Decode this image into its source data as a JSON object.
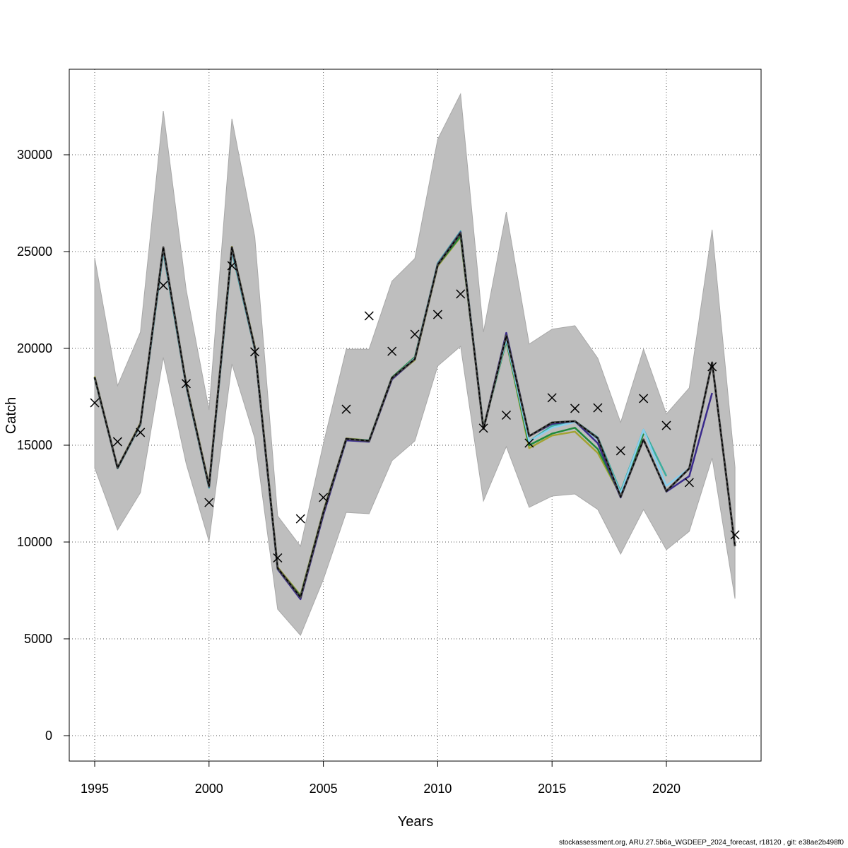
{
  "chart_data": {
    "type": "line",
    "title": "",
    "xlabel": "Years",
    "ylabel": "Catch",
    "xlim": [
      1994,
      2024
    ],
    "ylim": [
      -1300,
      34400
    ],
    "xticks": [
      1995,
      2000,
      2005,
      2010,
      2015,
      2020
    ],
    "yticks": [
      0,
      5000,
      10000,
      15000,
      20000,
      25000,
      30000
    ],
    "grid": true,
    "band": {
      "color": "#bebebe",
      "x_start": 1995,
      "upper": [
        24670,
        18070,
        20840,
        32260,
        23030,
        16820,
        31860,
        25770,
        11350,
        9780,
        15070,
        19960,
        19960,
        23470,
        24640,
        30800,
        33140,
        20840,
        27040,
        20220,
        20990,
        21170,
        19490,
        16170,
        19960,
        16610,
        17960,
        26130,
        13870
      ],
      "lower": [
        13830,
        10620,
        12550,
        19530,
        14050,
        10040,
        19200,
        15360,
        6530,
        5180,
        8070,
        11530,
        11460,
        14200,
        15220,
        19090,
        20110,
        12120,
        14930,
        11790,
        12370,
        12480,
        11680,
        9380,
        11680,
        9600,
        10550,
        14340,
        7080
      ]
    },
    "observed": {
      "marker": "x",
      "color": "#000000",
      "x_start": 1995,
      "values": [
        17190,
        15180,
        15660,
        23250,
        18180,
        12040,
        24270,
        19820,
        9180,
        11200,
        12300,
        16860,
        21680,
        19850,
        20730,
        21750,
        22810,
        15880,
        16550,
        15110,
        17450,
        16900,
        16930,
        14710,
        17410,
        16020,
        13070,
        19050,
        10370
      ]
    },
    "series": [
      {
        "color": "#000000",
        "dashed": true,
        "x_start": 1995,
        "values": [
          18500,
          13830,
          16100,
          25220,
          18140,
          12880,
          25220,
          20040,
          8650,
          7150,
          11530,
          15330,
          15220,
          18470,
          19450,
          24310,
          25950,
          15840,
          20660,
          15470,
          16170,
          16240,
          15360,
          12340,
          15290,
          12630,
          13800,
          19270,
          9780
        ]
      },
      {
        "color": "#3a2a8c",
        "dashed": false,
        "x_start": 1995,
        "values": [
          18500,
          13820,
          16080,
          25150,
          18100,
          12850,
          25150,
          20000,
          8600,
          7050,
          11400,
          15250,
          15180,
          18400,
          19450,
          24350,
          26000,
          15850,
          20800,
          15470,
          16100,
          16240,
          15100,
          12300,
          15300,
          12600,
          13400,
          17700
        ]
      },
      {
        "color": "#87cfee",
        "dashed": false,
        "x_start": 1995,
        "values": [
          18500,
          13820,
          16080,
          25100,
          18100,
          12850,
          25100,
          20000,
          8600,
          7100,
          11450,
          15250,
          15200,
          18450,
          19500,
          24350,
          26000,
          15900,
          20500,
          15200,
          15900,
          16200,
          15300,
          12500,
          15800,
          12900,
          13800
        ]
      },
      {
        "color": "#3cae9e",
        "dashed": false,
        "x_start": 1995,
        "values": [
          18450,
          13800,
          16050,
          25000,
          18050,
          12800,
          25000,
          19950,
          8600,
          7100,
          11450,
          15300,
          15250,
          18450,
          19500,
          24400,
          26050,
          15900,
          20450,
          15200,
          16000,
          16250,
          15400,
          12600,
          15800,
          13400
        ]
      },
      {
        "color": "#1f8a3c",
        "dashed": false,
        "x_start": 1995,
        "values": [
          18500,
          13830,
          16100,
          25150,
          18150,
          12880,
          25150,
          20050,
          8650,
          7200,
          11550,
          15330,
          15250,
          18500,
          19550,
          24300,
          25800,
          15900,
          20400,
          15000,
          15600,
          15900,
          14800,
          12400,
          15600
        ]
      },
      {
        "color": "#a3a332",
        "dashed": false,
        "x_start": 1995,
        "values": [
          18550,
          13850,
          16150,
          25200,
          18200,
          12950,
          25250,
          20100,
          8700,
          7250,
          11600,
          15350,
          15250,
          18450,
          19400,
          24250,
          25750,
          15950,
          20350,
          14850,
          15500,
          15700,
          14600,
          12400
        ]
      }
    ]
  },
  "footer": "stockassessment.org, ARU.27.5b6a_WGDEEP_2024_forecast, r18120 , git: e38ae2b498f0"
}
